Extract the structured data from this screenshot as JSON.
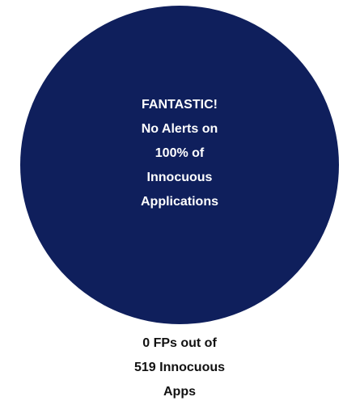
{
  "chart_data": {
    "type": "pie",
    "values": [
      100
    ],
    "colors": [
      "#0f1f5c"
    ],
    "annotation": [
      "FANTASTIC!",
      "No Alerts on",
      "100% of",
      "Innocuous",
      "Applications"
    ],
    "caption": [
      "0 FPs out of",
      "519 Innocuous",
      "Apps"
    ]
  }
}
